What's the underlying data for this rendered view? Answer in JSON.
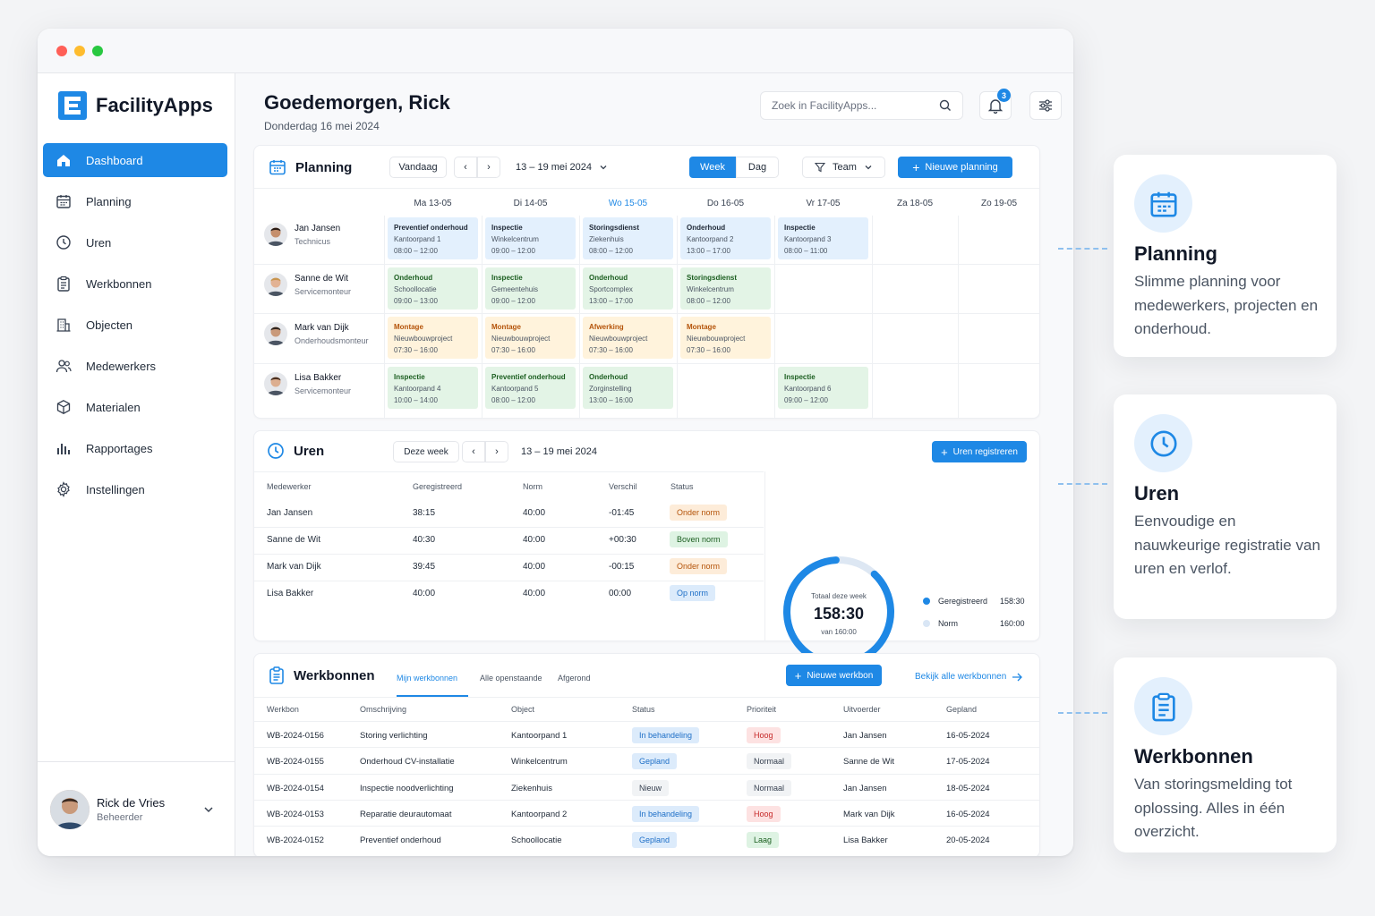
{
  "app": {
    "name": "FacilityApps"
  },
  "sidebar": {
    "items": [
      {
        "label": "Dashboard",
        "icon": "home-icon",
        "active": true
      },
      {
        "label": "Planning",
        "icon": "calendar-icon"
      },
      {
        "label": "Uren",
        "icon": "clock-icon"
      },
      {
        "label": "Werkbonnen",
        "icon": "clipboard-icon"
      },
      {
        "label": "Objecten",
        "icon": "building-icon"
      },
      {
        "label": "Medewerkers",
        "icon": "users-icon"
      },
      {
        "label": "Materialen",
        "icon": "box-icon"
      },
      {
        "label": "Rapportages",
        "icon": "bar-chart-icon"
      },
      {
        "label": "Instellingen",
        "icon": "gear-icon"
      }
    ],
    "user": {
      "name": "Rick de Vries",
      "role": "Beheerder"
    }
  },
  "header": {
    "greeting": "Goedemorgen, Rick",
    "date": "Donderdag 16 mei 2024",
    "search_placeholder": "Zoek in FacilityApps...",
    "notification_count": "3"
  },
  "planning": {
    "title": "Planning",
    "today_label": "Vandaag",
    "range": "13 – 19 mei 2024",
    "view_week": "Week",
    "view_day": "Dag",
    "filter": "Team",
    "new_label": "Nieuwe planning",
    "days": [
      "Ma 13-05",
      "Di 14-05",
      "Wo 15-05",
      "Do 16-05",
      "Vr 17-05",
      "Za 18-05",
      "Zo 19-05"
    ],
    "workers": [
      {
        "name": "Jan Jansen",
        "role": "Technicus",
        "tasks": [
          {
            "day": 0,
            "type": "Preventief onderhoud",
            "place": "Kantoorpand 1",
            "time": "08:00 – 12:00",
            "color": "blue"
          },
          {
            "day": 1,
            "type": "Inspectie",
            "place": "Winkelcentrum",
            "time": "09:00 – 12:00",
            "color": "blue"
          },
          {
            "day": 2,
            "type": "Storingsdienst",
            "place": "Ziekenhuis",
            "time": "08:00 – 12:00",
            "color": "blue"
          },
          {
            "day": 3,
            "type": "Onderhoud",
            "place": "Kantoorpand 2",
            "time": "13:00 – 17:00",
            "color": "blue"
          },
          {
            "day": 4,
            "type": "Inspectie",
            "place": "Kantoorpand 3",
            "time": "08:00 – 11:00",
            "color": "blue"
          }
        ]
      },
      {
        "name": "Sanne de Wit",
        "role": "Servicemonteur",
        "tasks": [
          {
            "day": 0,
            "type": "Onderhoud",
            "place": "Schoollocatie",
            "time": "09:00 – 13:00",
            "color": "green"
          },
          {
            "day": 1,
            "type": "Inspectie",
            "place": "Gemeentehuis",
            "time": "09:00 – 12:00",
            "color": "green"
          },
          {
            "day": 2,
            "type": "Onderhoud",
            "place": "Sportcomplex",
            "time": "13:00 – 17:00",
            "color": "green"
          },
          {
            "day": 3,
            "type": "Storingsdienst",
            "place": "Winkelcentrum",
            "time": "08:00 – 12:00",
            "color": "green"
          }
        ]
      },
      {
        "name": "Mark van Dijk",
        "role": "Onderhoudsmonteur",
        "tasks": [
          {
            "day": 0,
            "type": "Montage",
            "place": "Nieuwbouwproject",
            "time": "07:30 – 16:00",
            "color": "yellow"
          },
          {
            "day": 1,
            "type": "Montage",
            "place": "Nieuwbouwproject",
            "time": "07:30 – 16:00",
            "color": "yellow"
          },
          {
            "day": 2,
            "type": "Afwerking",
            "place": "Nieuwbouwproject",
            "time": "07:30 – 16:00",
            "color": "yellow"
          },
          {
            "day": 3,
            "type": "Montage",
            "place": "Nieuwbouwproject",
            "time": "07:30 – 16:00",
            "color": "yellow"
          }
        ]
      },
      {
        "name": "Lisa Bakker",
        "role": "Servicemonteur",
        "tasks": [
          {
            "day": 0,
            "type": "Inspectie",
            "place": "Kantoorpand 4",
            "time": "10:00 – 14:00",
            "color": "green"
          },
          {
            "day": 1,
            "type": "Preventief onderhoud",
            "place": "Kantoorpand 5",
            "time": "08:00 – 12:00",
            "color": "green"
          },
          {
            "day": 2,
            "type": "Onderhoud",
            "place": "Zorginstelling",
            "time": "13:00 – 16:00",
            "color": "green"
          },
          {
            "day": 4,
            "type": "Inspectie",
            "place": "Kantoorpand 6",
            "time": "09:00 – 12:00",
            "color": "green"
          }
        ]
      }
    ]
  },
  "uren": {
    "title": "Uren",
    "period_label": "Deze week",
    "range": "13 – 19 mei 2024",
    "register_label": "Uren registreren",
    "headers": [
      "Medewerker",
      "Geregistreerd",
      "Norm",
      "Verschil",
      "Status"
    ],
    "rows": [
      {
        "name": "Jan Jansen",
        "registered": "38:15",
        "norm": "40:00",
        "diff": "-01:45",
        "status": "Onder norm",
        "status_color": "orange"
      },
      {
        "name": "Sanne de Wit",
        "registered": "40:30",
        "norm": "40:00",
        "diff": "+00:30",
        "status": "Boven norm",
        "status_color": "green"
      },
      {
        "name": "Mark van Dijk",
        "registered": "39:45",
        "norm": "40:00",
        "diff": "-00:15",
        "status": "Onder norm",
        "status_color": "orange"
      },
      {
        "name": "Lisa Bakker",
        "registered": "40:00",
        "norm": "40:00",
        "diff": "00:00",
        "status": "Op norm",
        "status_color": "blue"
      }
    ],
    "total_label": "Totaal deze week",
    "total_value": "158:30",
    "total_of": "van 160:00",
    "progress": 0.9906,
    "legend": [
      {
        "label": "Geregistreerd",
        "value": "158:30",
        "color": "#1e88e5"
      },
      {
        "label": "Norm",
        "value": "160:00",
        "color": "#d9e6f5"
      }
    ]
  },
  "werkbonnen": {
    "title": "Werkbonnen",
    "tabs": [
      "Mijn werkbonnen",
      "Alle openstaande",
      "Afgerond"
    ],
    "new_label": "Nieuwe werkbon",
    "view_all": "Bekijk alle werkbonnen",
    "headers": [
      "Werkbon",
      "Omschrijving",
      "Object",
      "Status",
      "Prioriteit",
      "Uitvoerder",
      "Gepland"
    ],
    "rows": [
      {
        "id": "WB-2024-0156",
        "desc": "Storing verlichting",
        "object": "Kantoorpand 1",
        "status": "In behandeling",
        "status_color": "blue",
        "priority": "Hoog",
        "priority_color": "red",
        "assignee": "Jan Jansen",
        "date": "16-05-2024"
      },
      {
        "id": "WB-2024-0155",
        "desc": "Onderhoud CV-installatie",
        "object": "Winkelcentrum",
        "status": "Gepland",
        "status_color": "blue",
        "priority": "Normaal",
        "priority_color": "gray",
        "assignee": "Sanne de Wit",
        "date": "17-05-2024"
      },
      {
        "id": "WB-2024-0154",
        "desc": "Inspectie noodverlichting",
        "object": "Ziekenhuis",
        "status": "Nieuw",
        "status_color": "gray",
        "priority": "Normaal",
        "priority_color": "gray",
        "assignee": "Jan Jansen",
        "date": "18-05-2024"
      },
      {
        "id": "WB-2024-0153",
        "desc": "Reparatie deurautomaat",
        "object": "Kantoorpand 2",
        "status": "In behandeling",
        "status_color": "blue",
        "priority": "Hoog",
        "priority_color": "red",
        "assignee": "Mark van Dijk",
        "date": "16-05-2024"
      },
      {
        "id": "WB-2024-0152",
        "desc": "Preventief onderhoud",
        "object": "Schoollocatie",
        "status": "Gepland",
        "status_color": "blue",
        "priority": "Laag",
        "priority_color": "green",
        "assignee": "Lisa Bakker",
        "date": "20-05-2024"
      }
    ]
  },
  "features": [
    {
      "title": "Planning",
      "desc": "Slimme planning voor medewerkers, projecten en onderhoud.",
      "icon": "calendar-icon"
    },
    {
      "title": "Uren",
      "desc": "Eenvoudige en nauwkeurige registratie van uren en verlof.",
      "icon": "clock-icon"
    },
    {
      "title": "Werkbonnen",
      "desc": "Van storingsmelding tot oplossing. Alles in één overzicht.",
      "icon": "clipboard-icon"
    }
  ]
}
